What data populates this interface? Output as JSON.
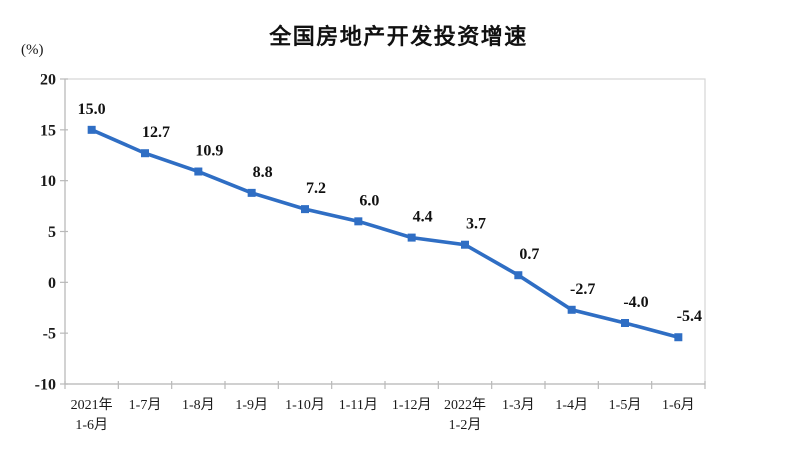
{
  "chart_data": {
    "type": "line",
    "title": "全国房地产开发投资增速",
    "unit_label": "(%)",
    "categories": [
      "2021年\n1-6月",
      "1-7月",
      "1-8月",
      "1-9月",
      "1-10月",
      "1-11月",
      "1-12月",
      "2022年\n1-2月",
      "1-3月",
      "1-4月",
      "1-5月",
      "1-6月"
    ],
    "series": [
      {
        "name": "全国房地产开发投资增速",
        "values": [
          15.0,
          12.7,
          10.9,
          8.8,
          7.2,
          6.0,
          4.4,
          3.7,
          0.7,
          -2.7,
          -4.0,
          -5.4
        ]
      }
    ],
    "data_labels": [
      "15.0",
      "12.7",
      "10.9",
      "8.8",
      "7.2",
      "6.0",
      "4.4",
      "3.7",
      "0.7",
      "-2.7",
      "-4.0",
      "-5.4"
    ],
    "xlabel": "",
    "ylabel": "(%)",
    "ylim": [
      -10,
      20
    ],
    "y_ticks": [
      20,
      15,
      10,
      5,
      0,
      -5,
      -10
    ],
    "grid": false,
    "legend": "none",
    "marker": "square",
    "colors": {
      "line": "#2f6ec4",
      "marker": "#2f6ec4",
      "text": "#1a1a1a",
      "data_label_text": "#111111",
      "axis": "#b9b9b9",
      "plot_border": "#d6d6d6",
      "title": "#111111"
    }
  }
}
